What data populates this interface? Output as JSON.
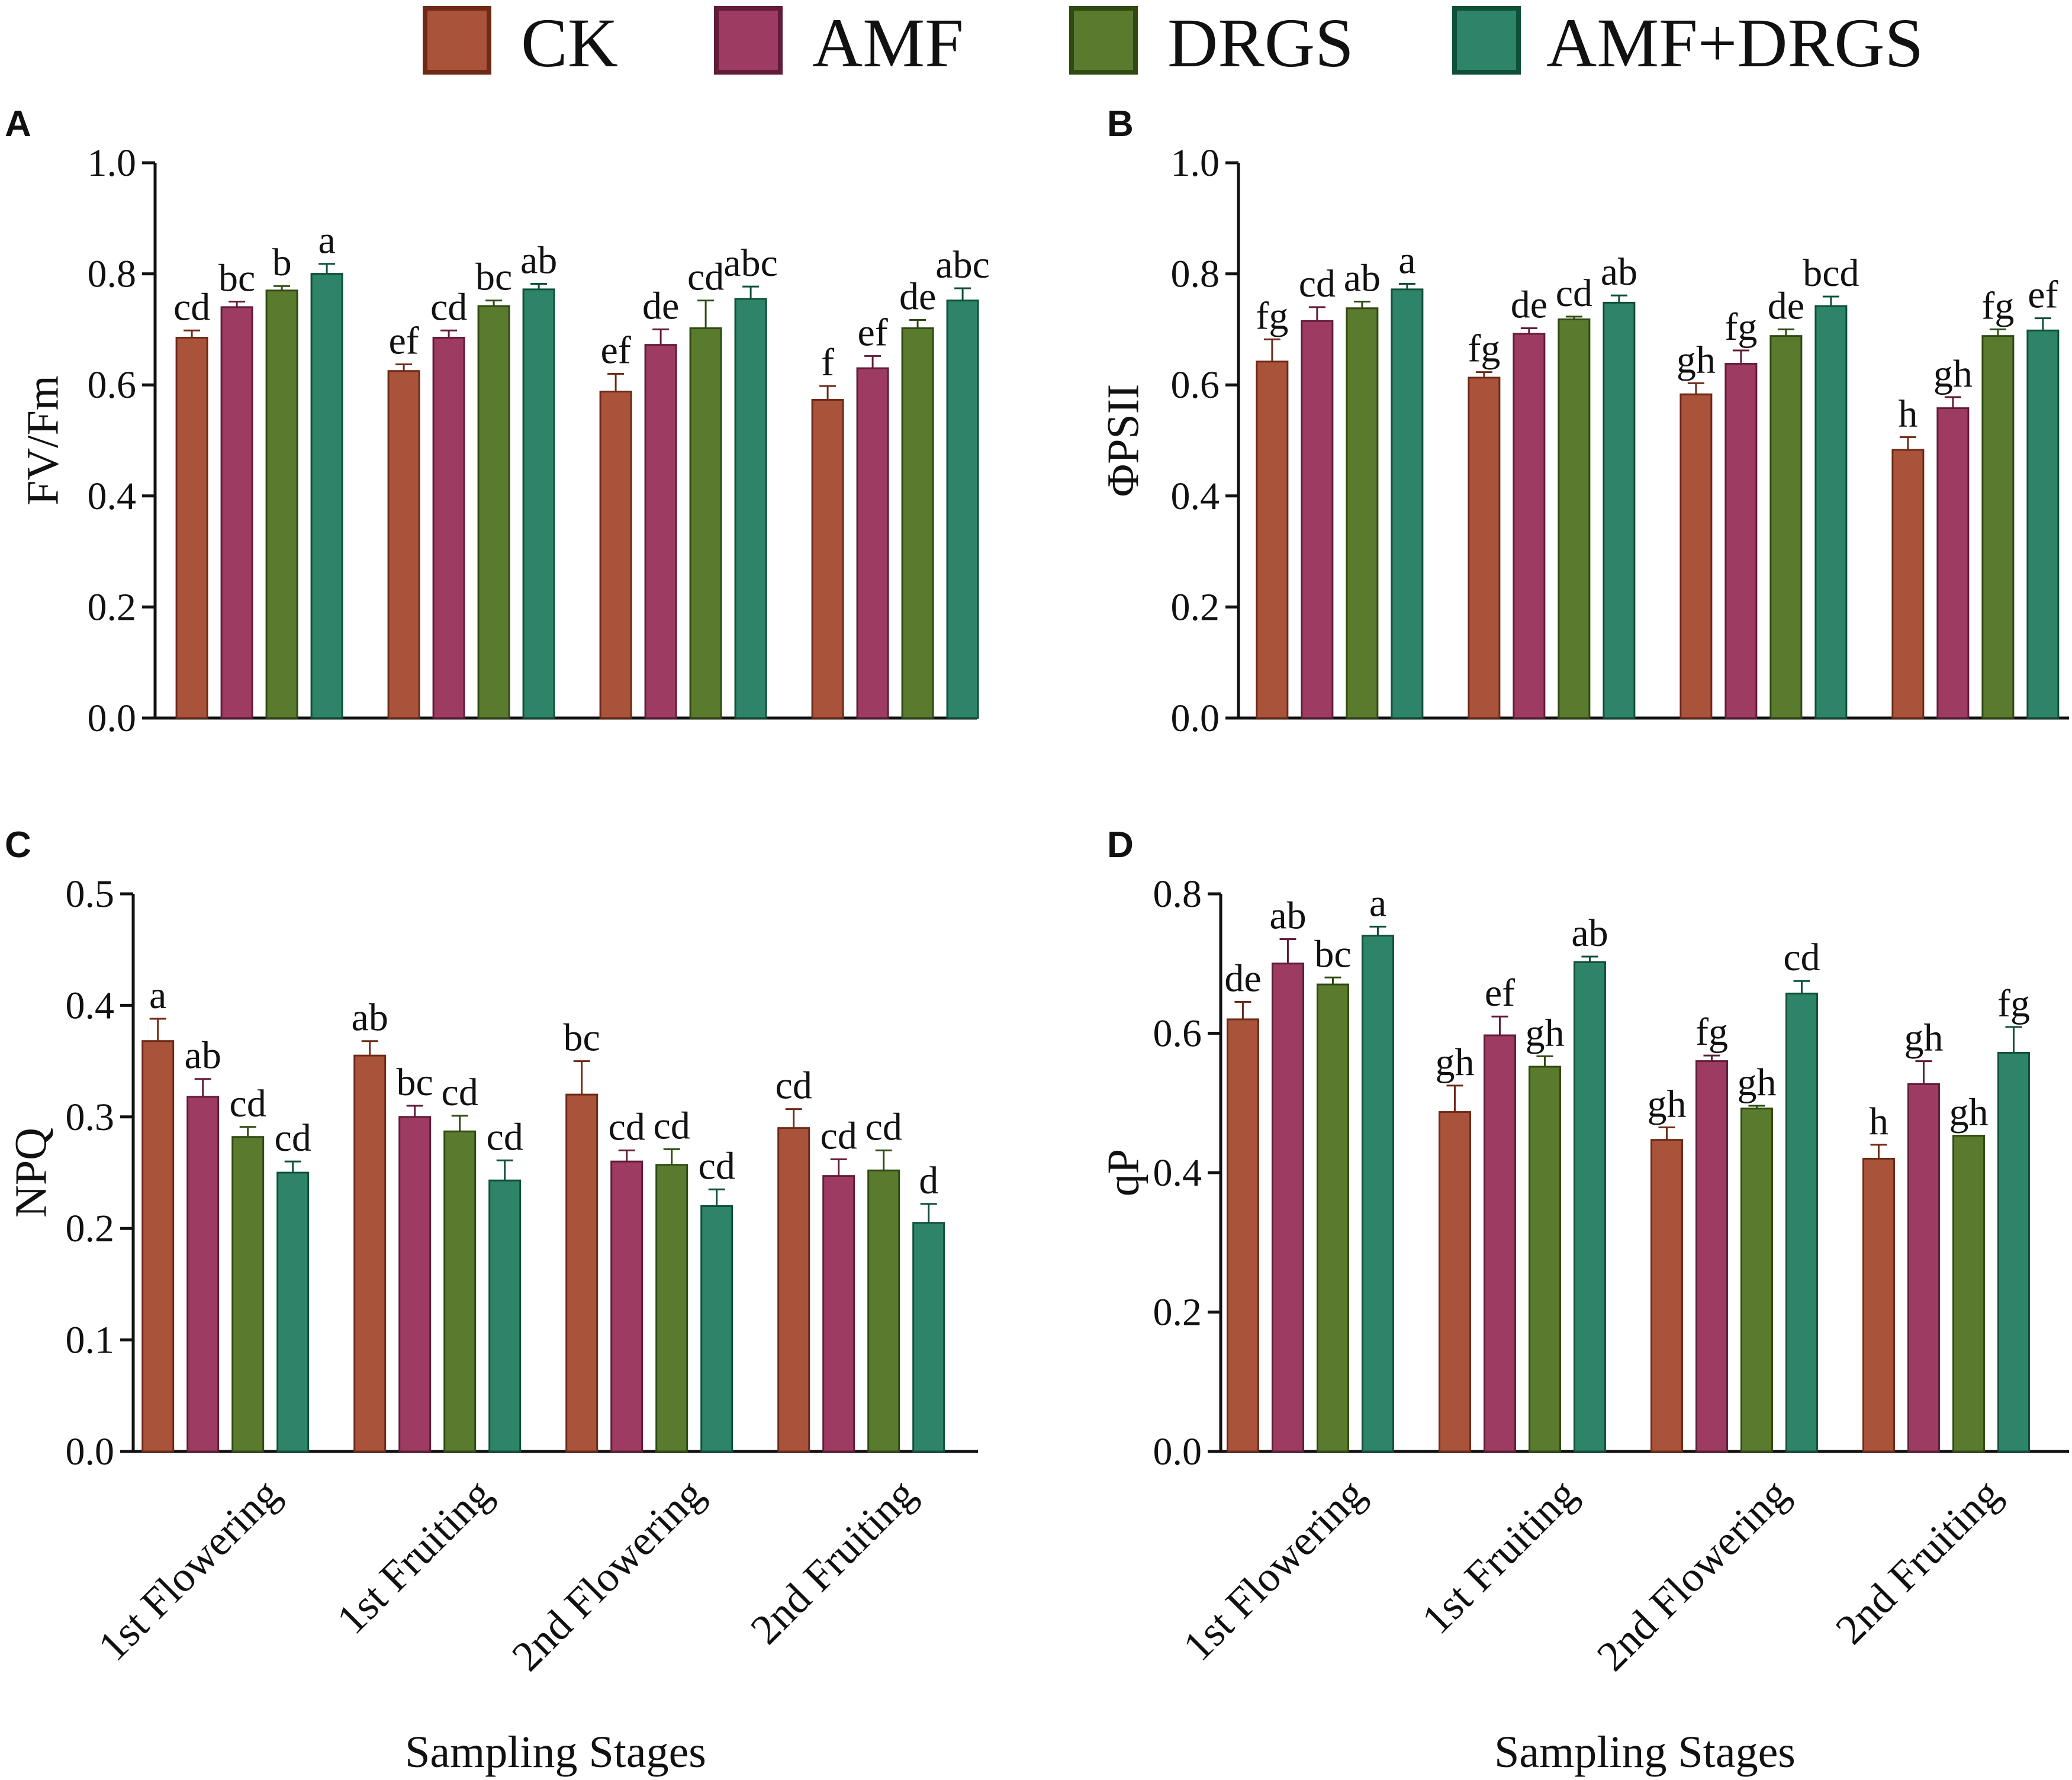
{
  "chart_data": {
    "type": "bar",
    "legend": {
      "position": "top",
      "entries": [
        {
          "name": "CK",
          "color": "#a9533a",
          "edge": "#6e2a17"
        },
        {
          "name": "AMF",
          "color": "#9e3b62",
          "edge": "#611c39"
        },
        {
          "name": "DRGS",
          "color": "#5a7a2e",
          "edge": "#2f4a12"
        },
        {
          "name": "AMF+DRGS",
          "color": "#2e8468",
          "edge": "#0f5038"
        }
      ]
    },
    "categories": [
      "1st Flowering",
      "1st Fruiting",
      "2nd Flowering",
      "2nd Fruiting"
    ],
    "xlabel": "Sampling Stages",
    "panels": [
      {
        "letter": "A",
        "ylabel": "FV/Fm",
        "ylim": [
          0,
          1.0
        ],
        "ticks": [
          "0.0",
          "0.2",
          "0.4",
          "0.6",
          "0.8",
          "1.0"
        ],
        "show_categories": false,
        "series": [
          {
            "name": "CK",
            "values": [
              0.685,
              0.625,
              0.588,
              0.573
            ],
            "errors": [
              0.013,
              0.012,
              0.032,
              0.025
            ],
            "labels": [
              "cd",
              "ef",
              "ef",
              "f"
            ]
          },
          {
            "name": "AMF",
            "values": [
              0.74,
              0.685,
              0.672,
              0.63
            ],
            "errors": [
              0.01,
              0.013,
              0.028,
              0.022
            ],
            "labels": [
              "bc",
              "cd",
              "de",
              "ef"
            ]
          },
          {
            "name": "DRGS",
            "values": [
              0.77,
              0.742,
              0.702,
              0.702
            ],
            "errors": [
              0.008,
              0.01,
              0.05,
              0.015
            ],
            "labels": [
              "b",
              "bc",
              "cd",
              "de"
            ]
          },
          {
            "name": "AMF+DRGS",
            "values": [
              0.8,
              0.772,
              0.755,
              0.752
            ],
            "errors": [
              0.018,
              0.01,
              0.022,
              0.022
            ],
            "labels": [
              "a",
              "ab",
              "abc",
              "abc"
            ]
          }
        ]
      },
      {
        "letter": "B",
        "ylabel": "ΦPSII",
        "ylim": [
          0,
          1.0
        ],
        "ticks": [
          "0.0",
          "0.2",
          "0.4",
          "0.6",
          "0.8",
          "1.0"
        ],
        "show_categories": false,
        "series": [
          {
            "name": "CK",
            "values": [
              0.642,
              0.613,
              0.583,
              0.483
            ],
            "errors": [
              0.04,
              0.01,
              0.02,
              0.023
            ],
            "labels": [
              "fg",
              "fg",
              "gh",
              "h"
            ]
          },
          {
            "name": "AMF",
            "values": [
              0.715,
              0.692,
              0.638,
              0.558
            ],
            "errors": [
              0.025,
              0.01,
              0.024,
              0.02
            ],
            "labels": [
              "cd",
              "de",
              "fg",
              "gh"
            ]
          },
          {
            "name": "DRGS",
            "values": [
              0.738,
              0.718,
              0.688,
              0.688
            ],
            "errors": [
              0.012,
              0.005,
              0.012,
              0.012
            ],
            "labels": [
              "ab",
              "cd",
              "de",
              "fg"
            ]
          },
          {
            "name": "AMF+DRGS",
            "values": [
              0.772,
              0.748,
              0.742,
              0.698
            ],
            "errors": [
              0.01,
              0.013,
              0.017,
              0.022
            ],
            "labels": [
              "a",
              "ab",
              "bcd",
              "ef"
            ]
          }
        ]
      },
      {
        "letter": "C",
        "ylabel": "NPQ",
        "ylim": [
          0,
          0.5
        ],
        "ticks": [
          "0.0",
          "0.1",
          "0.2",
          "0.3",
          "0.4",
          "0.5"
        ],
        "show_categories": true,
        "series": [
          {
            "name": "CK",
            "values": [
              0.368,
              0.355,
              0.32,
              0.29
            ],
            "errors": [
              0.02,
              0.013,
              0.03,
              0.017
            ],
            "labels": [
              "a",
              "ab",
              "bc",
              "cd"
            ]
          },
          {
            "name": "AMF",
            "values": [
              0.318,
              0.3,
              0.26,
              0.247
            ],
            "errors": [
              0.016,
              0.01,
              0.01,
              0.015
            ],
            "labels": [
              "ab",
              "bc",
              "cd",
              "cd"
            ]
          },
          {
            "name": "DRGS",
            "values": [
              0.282,
              0.287,
              0.257,
              0.252
            ],
            "errors": [
              0.009,
              0.014,
              0.014,
              0.018
            ],
            "labels": [
              "cd",
              "cd",
              "cd",
              "cd"
            ]
          },
          {
            "name": "AMF+DRGS",
            "values": [
              0.25,
              0.243,
              0.22,
              0.205
            ],
            "errors": [
              0.01,
              0.018,
              0.015,
              0.017
            ],
            "labels": [
              "cd",
              "cd",
              "cd",
              "d"
            ]
          }
        ]
      },
      {
        "letter": "D",
        "ylabel": "qP",
        "ylim": [
          0,
          0.8
        ],
        "ticks": [
          "0.0",
          "0.2",
          "0.4",
          "0.6",
          "0.8"
        ],
        "show_categories": true,
        "series": [
          {
            "name": "CK",
            "values": [
              0.62,
              0.487,
              0.447,
              0.42
            ],
            "errors": [
              0.025,
              0.038,
              0.018,
              0.02
            ],
            "labels": [
              "de",
              "gh",
              "gh",
              "h"
            ]
          },
          {
            "name": "AMF",
            "values": [
              0.7,
              0.597,
              0.56,
              0.527
            ],
            "errors": [
              0.035,
              0.027,
              0.008,
              0.033
            ],
            "labels": [
              "ab",
              "ef",
              "fg",
              "gh"
            ]
          },
          {
            "name": "DRGS",
            "values": [
              0.67,
              0.552,
              0.492,
              0.453
            ],
            "errors": [
              0.01,
              0.015,
              0.004,
              0.0
            ],
            "labels": [
              "bc",
              "gh",
              "gh",
              "gh"
            ]
          },
          {
            "name": "AMF+DRGS",
            "values": [
              0.74,
              0.702,
              0.657,
              0.572
            ],
            "errors": [
              0.013,
              0.008,
              0.018,
              0.037
            ],
            "labels": [
              "a",
              "ab",
              "cd",
              "fg"
            ]
          }
        ]
      }
    ]
  }
}
